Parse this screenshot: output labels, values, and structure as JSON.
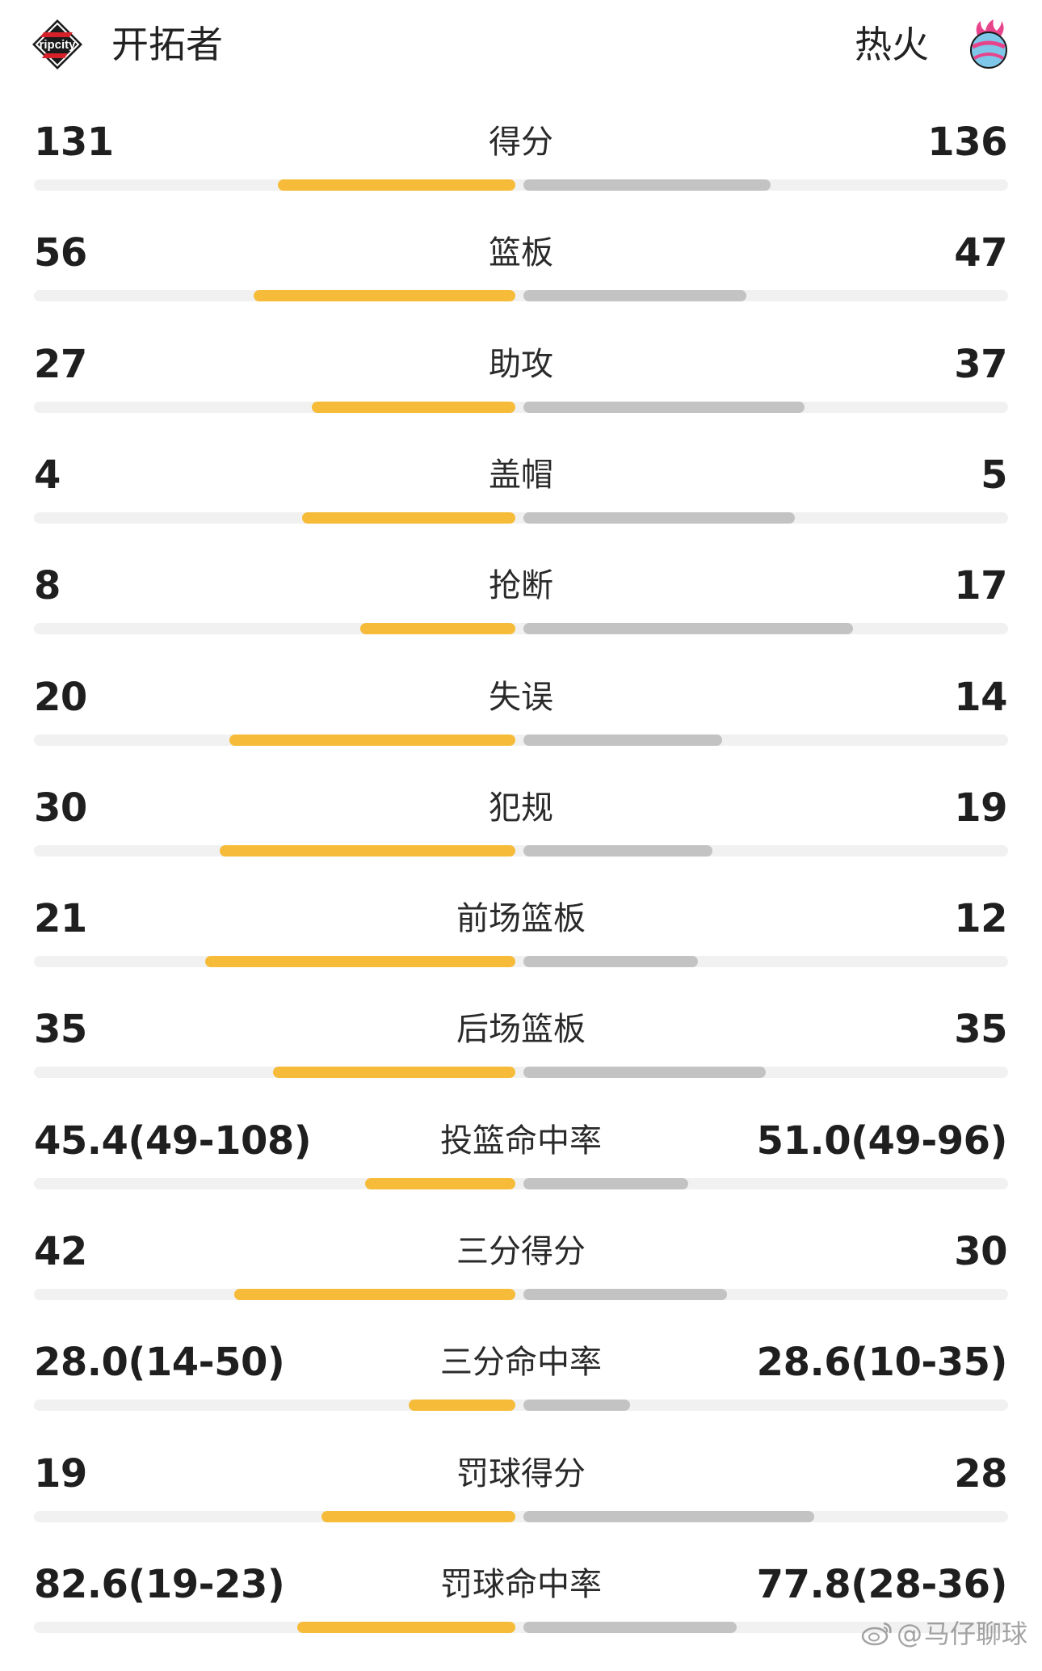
{
  "header": {
    "left_team": {
      "name": "开拓者",
      "logo_icon": "trail-blazers-logo",
      "logo_text": "ripcity"
    },
    "right_team": {
      "name": "热火",
      "logo_icon": "heat-logo"
    }
  },
  "colors": {
    "left_bar": "#f6bc39",
    "right_bar": "#c3c3c3",
    "track": "#f1f1f1"
  },
  "stats": [
    {
      "label": "得分",
      "left": "131",
      "right": "136",
      "left_fill": 0.49,
      "right_fill": 0.51
    },
    {
      "label": "篮板",
      "left": "56",
      "right": "47",
      "left_fill": 0.54,
      "right_fill": 0.46
    },
    {
      "label": "助攻",
      "left": "27",
      "right": "37",
      "left_fill": 0.42,
      "right_fill": 0.58
    },
    {
      "label": "盖帽",
      "left": "4",
      "right": "5",
      "left_fill": 0.44,
      "right_fill": 0.56
    },
    {
      "label": "抢断",
      "left": "8",
      "right": "17",
      "left_fill": 0.32,
      "right_fill": 0.68
    },
    {
      "label": "失误",
      "left": "20",
      "right": "14",
      "left_fill": 0.59,
      "right_fill": 0.41
    },
    {
      "label": "犯规",
      "left": "30",
      "right": "19",
      "left_fill": 0.61,
      "right_fill": 0.39
    },
    {
      "label": "前场篮板",
      "left": "21",
      "right": "12",
      "left_fill": 0.64,
      "right_fill": 0.36
    },
    {
      "label": "后场篮板",
      "left": "35",
      "right": "35",
      "left_fill": 0.5,
      "right_fill": 0.5
    },
    {
      "label": "投篮命中率",
      "left": "45.4(49-108)",
      "right": "51.0(49-96)",
      "left_fill": 0.31,
      "right_fill": 0.34
    },
    {
      "label": "三分得分",
      "left": "42",
      "right": "30",
      "left_fill": 0.58,
      "right_fill": 0.42
    },
    {
      "label": "三分命中率",
      "left": "28.0(14-50)",
      "right": "28.6(10-35)",
      "left_fill": 0.22,
      "right_fill": 0.22
    },
    {
      "label": "罚球得分",
      "left": "19",
      "right": "28",
      "left_fill": 0.4,
      "right_fill": 0.6
    },
    {
      "label": "罚球命中率",
      "left": "82.6(19-23)",
      "right": "77.8(28-36)",
      "left_fill": 0.45,
      "right_fill": 0.44
    }
  ],
  "watermark": {
    "icon": "weibo-logo",
    "at": "@",
    "text": "马仔聊球"
  }
}
